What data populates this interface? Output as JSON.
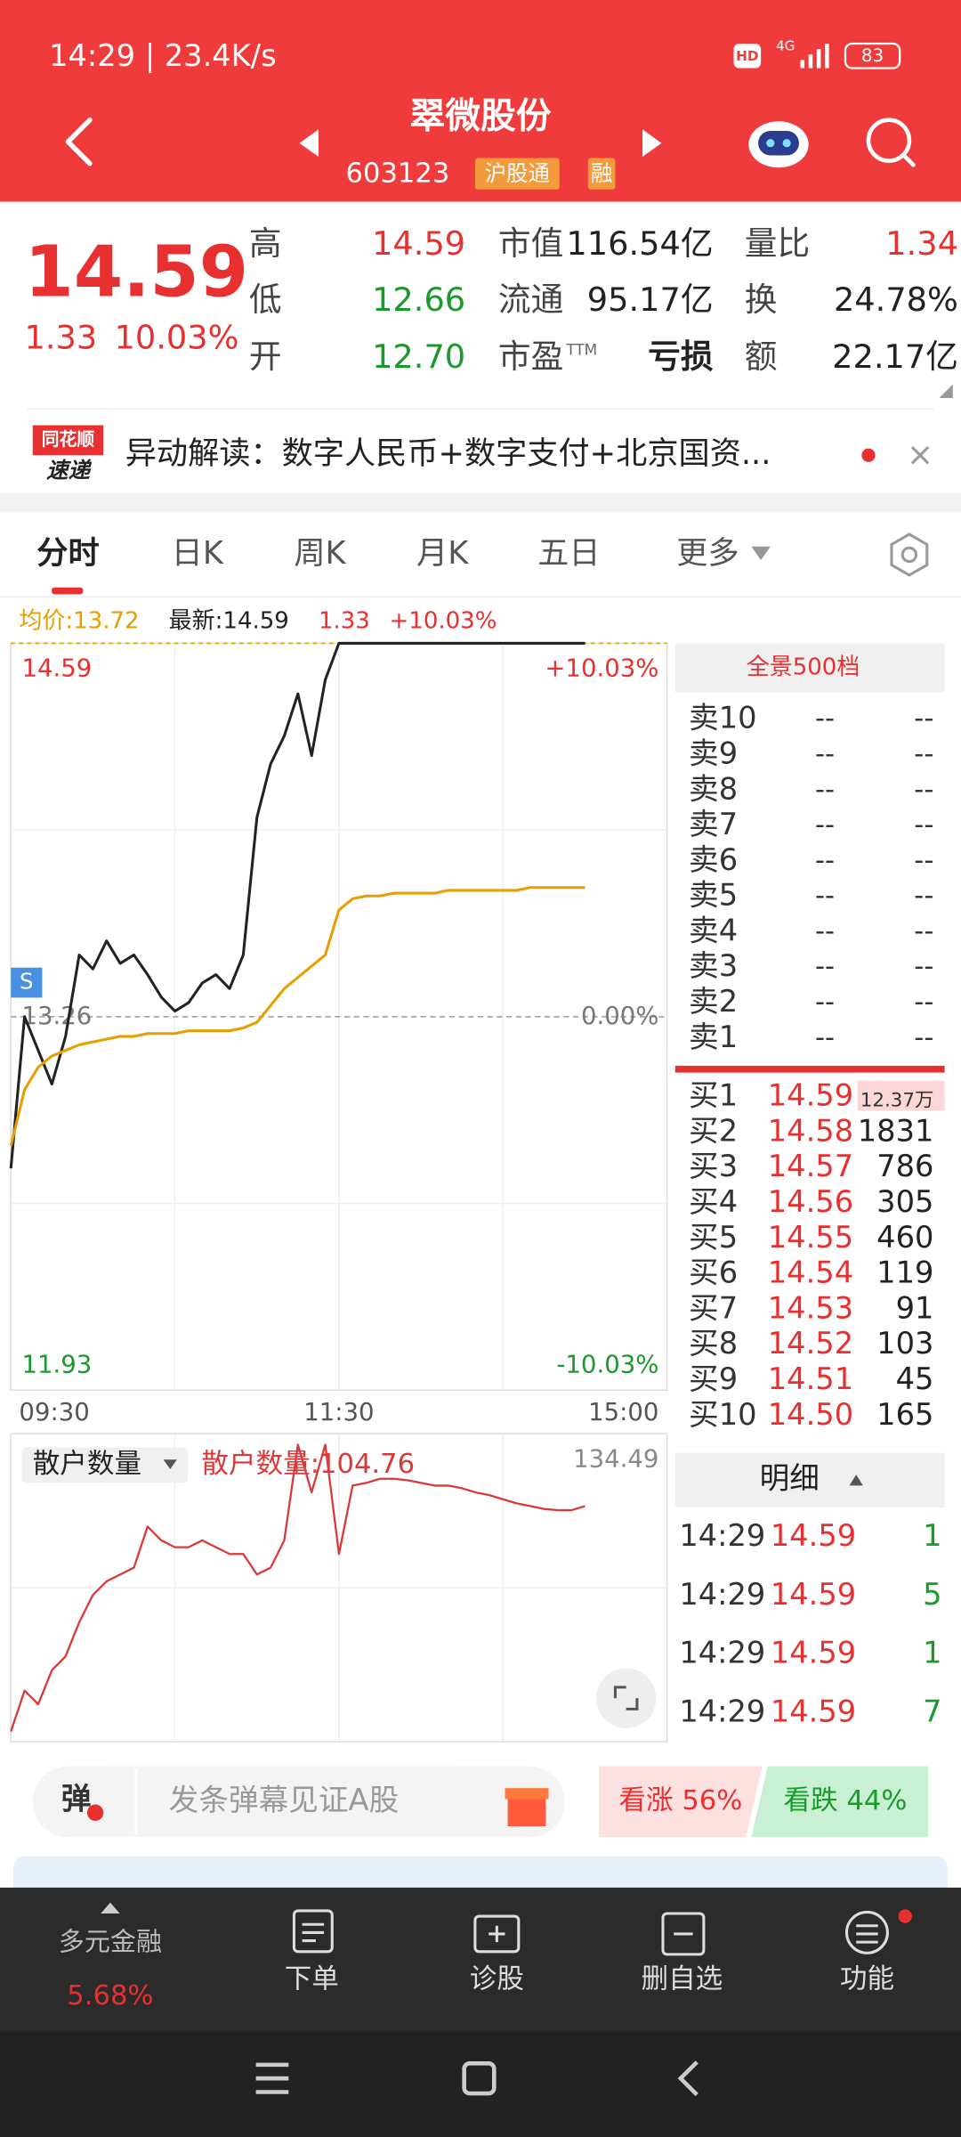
{
  "status_bar": {
    "time": "14:29 | 23.4K/s",
    "hd": "HD",
    "network": "4G",
    "battery": "83"
  },
  "header": {
    "title": "翠微股份",
    "code": "603123",
    "tags": [
      "沪股通",
      "融"
    ]
  },
  "quote": {
    "price": "14.59",
    "change": "1.33",
    "change_pct": "10.03%",
    "fields": [
      {
        "label": "高",
        "value": "14.59",
        "color": "#e93030"
      },
      {
        "label": "低",
        "value": "12.66",
        "color": "#1a9a2c"
      },
      {
        "label": "开",
        "value": "12.70",
        "color": "#1a9a2c"
      },
      {
        "label": "市值",
        "value": "116.54亿",
        "color": "#222222"
      },
      {
        "label": "流通",
        "value": "95.17亿",
        "color": "#222222"
      },
      {
        "label": "市盈",
        "sup": "TTM",
        "value": "亏损",
        "color": "#222222"
      },
      {
        "label": "量比",
        "value": "1.34",
        "color": "#e93030"
      },
      {
        "label": "换",
        "value": "24.78%",
        "color": "#222222"
      },
      {
        "label": "额",
        "value": "22.17亿",
        "color": "#222222"
      }
    ]
  },
  "news": {
    "source": [
      "同花顺",
      "速递"
    ],
    "text": "异动解读：数字人民币+数字支付+北京国资..."
  },
  "tabs": [
    "分时",
    "日K",
    "周K",
    "月K",
    "五日",
    "更多"
  ],
  "price_chart": {
    "header": {
      "avg": "均价:13.72",
      "latest": "最新:14.59",
      "change": "1.33",
      "pct": "+10.03%"
    },
    "marker": "S",
    "xlim": [
      0,
      240
    ],
    "xticks": [
      {
        "value": 0,
        "label": "09:30"
      },
      {
        "value": 120,
        "label": "11:30"
      },
      {
        "value": 240,
        "label": "15:00"
      }
    ],
    "ylim": [
      11.93,
      14.59
    ],
    "yticks": [
      14.59,
      13.26,
      11.93
    ],
    "pct_ticks": [
      {
        "value": 14.59,
        "label": "+10.03%"
      },
      {
        "value": 13.26,
        "label": "0.00%"
      },
      {
        "value": 11.93,
        "label": "-10.03%"
      }
    ],
    "x": [
      0,
      5,
      10,
      15,
      20,
      25,
      30,
      35,
      40,
      45,
      50,
      55,
      60,
      65,
      70,
      75,
      80,
      85,
      90,
      95,
      100,
      105,
      110,
      115,
      120,
      125,
      130,
      135,
      140,
      145,
      150,
      155,
      160,
      165,
      170,
      175,
      180,
      185,
      190,
      195,
      200,
      205,
      210
    ],
    "series": [
      {
        "color": "#222222",
        "values": [
          12.72,
          13.26,
          13.14,
          13.02,
          13.19,
          13.48,
          13.43,
          13.53,
          13.45,
          13.48,
          13.41,
          13.33,
          13.28,
          13.31,
          13.38,
          13.41,
          13.36,
          13.48,
          13.97,
          14.16,
          14.26,
          14.41,
          14.19,
          14.46,
          14.59,
          14.59,
          14.59,
          14.59,
          14.59,
          14.59,
          14.59,
          14.59,
          14.59,
          14.59,
          14.59,
          14.59,
          14.59,
          14.59,
          14.59,
          14.59,
          14.59,
          14.59,
          14.59
        ]
      },
      {
        "color": "#e5a000",
        "values": [
          12.8,
          13.0,
          13.08,
          13.12,
          13.14,
          13.16,
          13.17,
          13.18,
          13.19,
          13.19,
          13.2,
          13.2,
          13.2,
          13.21,
          13.21,
          13.21,
          13.21,
          13.22,
          13.24,
          13.3,
          13.36,
          13.4,
          13.44,
          13.48,
          13.64,
          13.68,
          13.69,
          13.69,
          13.7,
          13.7,
          13.7,
          13.7,
          13.71,
          13.71,
          13.71,
          13.71,
          13.71,
          13.71,
          13.72,
          13.72,
          13.72,
          13.72,
          13.72
        ]
      }
    ]
  },
  "retail_chart": {
    "label": "散户数量",
    "current": "散户数量:104.76",
    "xlim": [
      0,
      240
    ],
    "ylim": [
      8,
      134.49
    ],
    "yticks": [
      134.49
    ],
    "x": [
      0,
      5,
      10,
      15,
      20,
      25,
      30,
      35,
      40,
      45,
      50,
      55,
      60,
      65,
      70,
      75,
      80,
      85,
      90,
      95,
      100,
      105,
      110,
      115,
      120,
      125,
      130,
      135,
      140,
      145,
      150,
      155,
      160,
      165,
      170,
      175,
      180,
      185,
      190,
      195,
      200,
      205,
      210
    ],
    "color": "#d83a3a",
    "values": [
      12.2,
      29.0,
      23.4,
      37.4,
      43.1,
      57.1,
      68.3,
      73.9,
      76.7,
      79.5,
      96.4,
      90.7,
      87.9,
      87.9,
      90.7,
      87.9,
      85.1,
      85.1,
      76.7,
      79.5,
      90.7,
      130.0,
      110.4,
      130.0,
      85.1,
      113.2,
      114.3,
      116.0,
      116.0,
      115.4,
      114.3,
      113.2,
      113.2,
      112.1,
      110.4,
      109.3,
      107.6,
      105.9,
      104.8,
      103.6,
      103.1,
      103.1,
      104.76
    ]
  },
  "order_book": {
    "title": "全景500档",
    "sell": [
      {
        "label": "卖10",
        "price": "--",
        "volume": "--"
      },
      {
        "label": "卖9",
        "price": "--",
        "volume": "--"
      },
      {
        "label": "卖8",
        "price": "--",
        "volume": "--"
      },
      {
        "label": "卖7",
        "price": "--",
        "volume": "--"
      },
      {
        "label": "卖6",
        "price": "--",
        "volume": "--"
      },
      {
        "label": "卖5",
        "price": "--",
        "volume": "--"
      },
      {
        "label": "卖4",
        "price": "--",
        "volume": "--"
      },
      {
        "label": "卖3",
        "price": "--",
        "volume": "--"
      },
      {
        "label": "卖2",
        "price": "--",
        "volume": "--"
      },
      {
        "label": "卖1",
        "price": "--",
        "volume": "--"
      }
    ],
    "buy": [
      {
        "label": "买1",
        "price": "14.59",
        "volume": "12.37万"
      },
      {
        "label": "买2",
        "price": "14.58",
        "volume": "1831"
      },
      {
        "label": "买3",
        "price": "14.57",
        "volume": "786"
      },
      {
        "label": "买4",
        "price": "14.56",
        "volume": "305"
      },
      {
        "label": "买5",
        "price": "14.55",
        "volume": "460"
      },
      {
        "label": "买6",
        "price": "14.54",
        "volume": "119"
      },
      {
        "label": "买7",
        "price": "14.53",
        "volume": "91"
      },
      {
        "label": "买8",
        "price": "14.52",
        "volume": "103"
      },
      {
        "label": "买9",
        "price": "14.51",
        "volume": "45"
      },
      {
        "label": "买10",
        "price": "14.50",
        "volume": "165"
      }
    ]
  },
  "detail": {
    "title": "明细",
    "rows": [
      {
        "time": "14:29",
        "price": "14.59",
        "volume": "1"
      },
      {
        "time": "14:29",
        "price": "14.59",
        "volume": "5"
      },
      {
        "time": "14:29",
        "price": "14.59",
        "volume": "1"
      },
      {
        "time": "14:29",
        "price": "14.59",
        "volume": "7"
      }
    ]
  },
  "comment_bar": {
    "icon": "弹",
    "placeholder": "发条弹幕见证A股",
    "bull": "看涨 56%",
    "bear": "看跌 44%"
  },
  "nav": {
    "sector": "多元金融",
    "sector_change": "5.68%",
    "items": [
      "下单",
      "诊股",
      "删自选",
      "功能"
    ]
  }
}
